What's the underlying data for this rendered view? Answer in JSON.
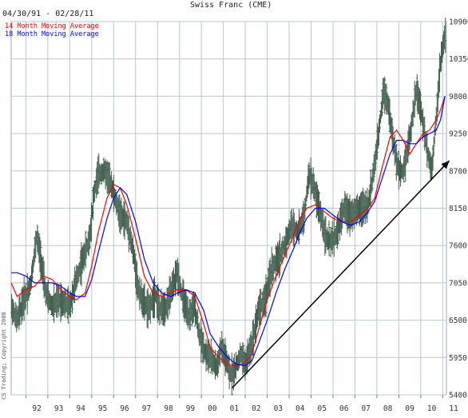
{
  "chart_data": {
    "type": "line",
    "title": "Swiss Franc (CME)",
    "date_range": "04/30/91 - 02/28/11",
    "copyright": "CS Trading; Copyright 2008",
    "colors": {
      "bars": "#3d5c4a",
      "ma14": "#ff0000",
      "ma18": "#0000ff",
      "grid": "#b9c7c9",
      "trendline": "#000000"
    },
    "x_range": [
      1991.33,
      2011.17
    ],
    "ylim": [
      5400,
      10900
    ],
    "y_ticks": [
      5400,
      5950,
      6500,
      7050,
      7600,
      8150,
      8700,
      9250,
      9800,
      10350,
      10900
    ],
    "x_tick_labels": [
      {
        "label": "92",
        "year": 1992
      },
      {
        "label": "93",
        "year": 1993
      },
      {
        "label": "94",
        "year": 1994
      },
      {
        "label": "95",
        "year": 1995
      },
      {
        "label": "96",
        "year": 1996
      },
      {
        "label": "97",
        "year": 1997
      },
      {
        "label": "98",
        "year": 1998
      },
      {
        "label": "99",
        "year": 1999
      },
      {
        "label": "00",
        "year": 2000
      },
      {
        "label": "01",
        "year": 2001
      },
      {
        "label": "02",
        "year": 2002
      },
      {
        "label": "03",
        "year": 2003
      },
      {
        "label": "04",
        "year": 2004
      },
      {
        "label": "05",
        "year": 2005
      },
      {
        "label": "06",
        "year": 2006
      },
      {
        "label": "07",
        "year": 2007
      },
      {
        "label": "08",
        "year": 2008
      },
      {
        "label": "09",
        "year": 2009
      },
      {
        "label": "10",
        "year": 2010
      },
      {
        "label": "11",
        "year": 2011
      }
    ],
    "price_path": [
      [
        1991.33,
        6700
      ],
      [
        1991.6,
        6500
      ],
      [
        1991.9,
        6800
      ],
      [
        1992.2,
        7000
      ],
      [
        1992.5,
        7750
      ],
      [
        1992.7,
        7350
      ],
      [
        1992.9,
        6900
      ],
      [
        1993.2,
        6700
      ],
      [
        1993.5,
        6800
      ],
      [
        1993.8,
        6750
      ],
      [
        1994.0,
        6700
      ],
      [
        1994.3,
        7100
      ],
      [
        1994.6,
        7400
      ],
      [
        1994.9,
        7700
      ],
      [
        1995.1,
        8350
      ],
      [
        1995.3,
        8650
      ],
      [
        1995.6,
        8700
      ],
      [
        1995.9,
        8500
      ],
      [
        1996.1,
        8250
      ],
      [
        1996.3,
        8050
      ],
      [
        1996.6,
        7950
      ],
      [
        1996.9,
        7500
      ],
      [
        1997.1,
        7000
      ],
      [
        1997.3,
        6800
      ],
      [
        1997.6,
        6650
      ],
      [
        1997.9,
        6900
      ],
      [
        1998.1,
        6650
      ],
      [
        1998.4,
        6700
      ],
      [
        1998.7,
        7000
      ],
      [
        1998.9,
        7200
      ],
      [
        1999.1,
        6900
      ],
      [
        1999.4,
        6550
      ],
      [
        1999.7,
        6700
      ],
      [
        1999.9,
        6300
      ],
      [
        2000.2,
        6000
      ],
      [
        2000.4,
        5950
      ],
      [
        2000.7,
        5800
      ],
      [
        2000.9,
        6100
      ],
      [
        2001.1,
        5950
      ],
      [
        2001.3,
        5700
      ],
      [
        2001.5,
        5750
      ],
      [
        2001.8,
        6000
      ],
      [
        2002.0,
        5850
      ],
      [
        2002.3,
        6150
      ],
      [
        2002.6,
        6650
      ],
      [
        2002.9,
        6800
      ],
      [
        2003.2,
        7250
      ],
      [
        2003.5,
        7400
      ],
      [
        2003.8,
        7600
      ],
      [
        2004.1,
        7900
      ],
      [
        2004.4,
        7800
      ],
      [
        2004.7,
        8050
      ],
      [
        2004.9,
        8650
      ],
      [
        2005.1,
        8500
      ],
      [
        2005.4,
        8100
      ],
      [
        2005.7,
        7700
      ],
      [
        2005.9,
        7650
      ],
      [
        2006.2,
        7800
      ],
      [
        2006.5,
        8150
      ],
      [
        2006.8,
        8050
      ],
      [
        2007.0,
        8100
      ],
      [
        2007.3,
        8150
      ],
      [
        2007.6,
        8200
      ],
      [
        2007.9,
        8800
      ],
      [
        2008.1,
        9300
      ],
      [
        2008.3,
        9900
      ],
      [
        2008.5,
        9700
      ],
      [
        2008.8,
        9000
      ],
      [
        2009.0,
        8700
      ],
      [
        2009.2,
        8700
      ],
      [
        2009.5,
        9200
      ],
      [
        2009.8,
        9900
      ],
      [
        2010.0,
        9600
      ],
      [
        2010.3,
        9000
      ],
      [
        2010.5,
        8700
      ],
      [
        2010.7,
        9500
      ],
      [
        2010.9,
        10300
      ],
      [
        2011.1,
        10700
      ]
    ],
    "series": [
      {
        "name": "14 Month Moving Average",
        "color": "#ff0000",
        "points": [
          [
            1991.33,
            7050
          ],
          [
            1991.6,
            6850
          ],
          [
            1992.0,
            6950
          ],
          [
            1992.4,
            7000
          ],
          [
            1992.8,
            7150
          ],
          [
            1993.2,
            7100
          ],
          [
            1993.6,
            6950
          ],
          [
            1994.0,
            6850
          ],
          [
            1994.3,
            6800
          ],
          [
            1994.7,
            6900
          ],
          [
            1995.0,
            7300
          ],
          [
            1995.3,
            7800
          ],
          [
            1995.7,
            8300
          ],
          [
            1996.0,
            8500
          ],
          [
            1996.3,
            8450
          ],
          [
            1996.6,
            8200
          ],
          [
            1997.0,
            7700
          ],
          [
            1997.4,
            7150
          ],
          [
            1997.8,
            6900
          ],
          [
            1998.2,
            6850
          ],
          [
            1998.6,
            6900
          ],
          [
            1998.9,
            6950
          ],
          [
            1999.3,
            6950
          ],
          [
            1999.7,
            6850
          ],
          [
            2000.1,
            6450
          ],
          [
            2000.4,
            6100
          ],
          [
            2000.8,
            5950
          ],
          [
            2001.2,
            5850
          ],
          [
            2001.6,
            5820
          ],
          [
            2002.0,
            5870
          ],
          [
            2002.3,
            6000
          ],
          [
            2002.6,
            6350
          ],
          [
            2003.0,
            6800
          ],
          [
            2003.4,
            7150
          ],
          [
            2003.8,
            7450
          ],
          [
            2004.2,
            7750
          ],
          [
            2004.5,
            8000
          ],
          [
            2004.8,
            8150
          ],
          [
            2005.2,
            8200
          ],
          [
            2005.6,
            8100
          ],
          [
            2006.0,
            8000
          ],
          [
            2006.4,
            7950
          ],
          [
            2006.8,
            7950
          ],
          [
            2007.2,
            8050
          ],
          [
            2007.6,
            8150
          ],
          [
            2007.9,
            8300
          ],
          [
            2008.2,
            8700
          ],
          [
            2008.6,
            9200
          ],
          [
            2008.9,
            9300
          ],
          [
            2009.2,
            9150
          ],
          [
            2009.5,
            8950
          ],
          [
            2009.8,
            9100
          ],
          [
            2010.1,
            9250
          ],
          [
            2010.4,
            9300
          ],
          [
            2010.7,
            9450
          ],
          [
            2010.9,
            9600
          ],
          [
            2011.1,
            9800
          ]
        ]
      },
      {
        "name": "18 Month Moving Average",
        "color": "#0000ff",
        "points": [
          [
            1991.33,
            7200
          ],
          [
            1991.6,
            7200
          ],
          [
            1992.0,
            7150
          ],
          [
            1992.4,
            7050
          ],
          [
            1992.8,
            7050
          ],
          [
            1993.2,
            7050
          ],
          [
            1993.6,
            7000
          ],
          [
            1994.0,
            6900
          ],
          [
            1994.3,
            6850
          ],
          [
            1994.7,
            6850
          ],
          [
            1995.0,
            7100
          ],
          [
            1995.3,
            7500
          ],
          [
            1995.7,
            8000
          ],
          [
            1996.0,
            8300
          ],
          [
            1996.3,
            8450
          ],
          [
            1996.6,
            8350
          ],
          [
            1997.0,
            7950
          ],
          [
            1997.4,
            7400
          ],
          [
            1997.8,
            7050
          ],
          [
            1998.2,
            6900
          ],
          [
            1998.6,
            6850
          ],
          [
            1998.9,
            6900
          ],
          [
            1999.3,
            6950
          ],
          [
            1999.7,
            6900
          ],
          [
            2000.1,
            6650
          ],
          [
            2000.4,
            6300
          ],
          [
            2000.8,
            6100
          ],
          [
            2001.2,
            5950
          ],
          [
            2001.6,
            5850
          ],
          [
            2002.0,
            5830
          ],
          [
            2002.3,
            5900
          ],
          [
            2002.6,
            6150
          ],
          [
            2003.0,
            6500
          ],
          [
            2003.4,
            6900
          ],
          [
            2003.8,
            7250
          ],
          [
            2004.2,
            7550
          ],
          [
            2004.5,
            7800
          ],
          [
            2004.8,
            8000
          ],
          [
            2005.2,
            8150
          ],
          [
            2005.6,
            8150
          ],
          [
            2006.0,
            8050
          ],
          [
            2006.4,
            7950
          ],
          [
            2006.8,
            7900
          ],
          [
            2007.2,
            7950
          ],
          [
            2007.6,
            8100
          ],
          [
            2007.9,
            8250
          ],
          [
            2008.2,
            8550
          ],
          [
            2008.6,
            8950
          ],
          [
            2008.9,
            9150
          ],
          [
            2009.2,
            9150
          ],
          [
            2009.5,
            9100
          ],
          [
            2009.8,
            9100
          ],
          [
            2010.1,
            9200
          ],
          [
            2010.4,
            9250
          ],
          [
            2010.7,
            9300
          ],
          [
            2010.9,
            9450
          ],
          [
            2011.1,
            9800
          ]
        ]
      }
    ],
    "trendline": {
      "from": [
        2001.4,
        5500
      ],
      "to": [
        2011.3,
        8850
      ],
      "arrow": true
    }
  }
}
